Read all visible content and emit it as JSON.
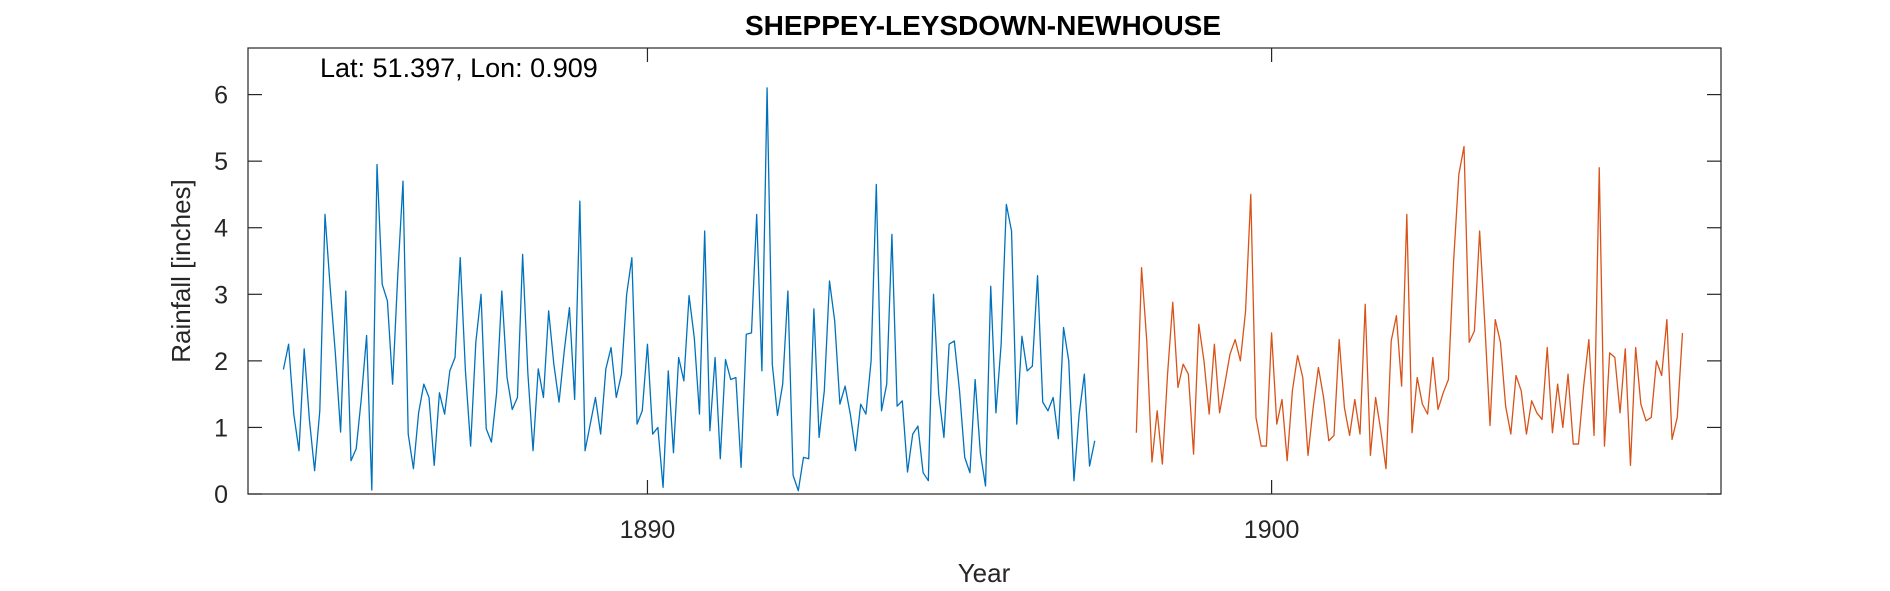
{
  "chart_data": {
    "type": "line",
    "title": "SHEPPEY-LEYSDOWN-NEWHOUSE",
    "annotation": "Lat: 51.397, Lon: 0.909",
    "xlabel": "Year",
    "ylabel": "Rainfall [inches]",
    "xlim": [
      1883.6,
      1907.2
    ],
    "ylim": [
      0,
      6.7
    ],
    "xticks": [
      1890,
      1900
    ],
    "xtick_labels": [
      "1890",
      "1900"
    ],
    "yticks": [
      0,
      1,
      2,
      3,
      4,
      5,
      6
    ],
    "ytick_labels": [
      "0",
      "1",
      "2",
      "3",
      "4",
      "5",
      "6"
    ],
    "grid": false,
    "legend": "none",
    "series": [
      {
        "color": "#0072BD",
        "x_start": 1884.167,
        "x_step": 0.08333,
        "values": [
          1.87,
          2.25,
          1.2,
          0.65,
          2.18,
          1.12,
          0.35,
          1.25,
          4.2,
          3.1,
          2.1,
          0.93,
          3.05,
          0.5,
          0.68,
          1.45,
          2.38,
          0.06,
          4.95,
          3.15,
          2.9,
          1.65,
          3.3,
          4.7,
          0.9,
          0.38,
          1.22,
          1.65,
          1.45,
          0.43,
          1.52,
          1.2,
          1.85,
          2.05,
          3.55,
          1.85,
          0.72,
          2.28,
          3.0,
          0.98,
          0.78,
          1.52,
          3.05,
          1.75,
          1.27,
          1.45,
          3.6,
          1.82,
          0.65,
          1.88,
          1.45,
          2.75,
          1.95,
          1.38,
          2.15,
          2.8,
          1.42,
          4.4,
          0.65,
          1.05,
          1.45,
          0.9,
          1.88,
          2.2,
          1.45,
          1.8,
          3.0,
          3.55,
          1.05,
          1.25,
          2.25,
          0.9,
          1.0,
          0.1,
          1.85,
          0.62,
          2.05,
          1.7,
          2.98,
          2.35,
          1.2,
          3.95,
          0.95,
          2.05,
          0.53,
          2.02,
          1.72,
          1.75,
          0.4,
          2.4,
          2.42,
          4.2,
          1.85,
          6.1,
          1.95,
          1.18,
          1.65,
          3.05,
          0.28,
          0.05,
          0.55,
          0.53,
          2.78,
          0.85,
          1.55,
          3.2,
          2.6,
          1.35,
          1.62,
          1.2,
          0.65,
          1.35,
          1.2,
          2.0,
          4.65,
          1.25,
          1.65,
          3.9,
          1.32,
          1.4,
          0.33,
          0.9,
          1.02,
          0.32,
          0.2,
          3.0,
          1.5,
          0.85,
          2.25,
          2.3,
          1.55,
          0.55,
          0.32,
          1.72,
          0.62,
          0.12,
          3.12,
          1.22,
          2.25,
          4.35,
          3.95,
          1.05,
          2.37,
          1.85,
          1.92,
          3.28,
          1.38,
          1.25,
          1.45,
          0.83,
          2.5,
          2.0,
          0.2,
          1.2,
          1.8,
          0.42,
          0.8
        ]
      },
      {
        "color": "#D95319",
        "x_start": 1897.833,
        "x_step": 0.08333,
        "values": [
          0.92,
          3.4,
          2.3,
          0.48,
          1.25,
          0.45,
          1.8,
          2.88,
          1.6,
          1.95,
          1.8,
          0.6,
          2.55,
          2.0,
          1.2,
          2.25,
          1.22,
          1.65,
          2.1,
          2.32,
          2.0,
          2.75,
          4.5,
          1.15,
          0.72,
          0.72,
          2.42,
          1.05,
          1.42,
          0.5,
          1.55,
          2.08,
          1.75,
          0.58,
          1.3,
          1.9,
          1.45,
          0.8,
          0.88,
          2.32,
          1.3,
          0.88,
          1.42,
          0.9,
          2.85,
          0.58,
          1.45,
          0.95,
          0.38,
          2.3,
          2.68,
          1.62,
          4.2,
          0.92,
          1.75,
          1.35,
          1.2,
          2.05,
          1.27,
          1.52,
          1.72,
          3.5,
          4.8,
          5.22,
          2.28,
          2.45,
          3.95,
          2.55,
          1.03,
          2.62,
          2.28,
          1.32,
          0.9,
          1.78,
          1.55,
          0.9,
          1.4,
          1.22,
          1.12,
          2.2,
          0.92,
          1.65,
          1.0,
          1.8,
          0.75,
          0.75,
          1.62,
          2.32,
          0.88,
          4.9,
          0.72,
          2.12,
          2.05,
          1.22,
          2.18,
          0.43,
          2.2,
          1.35,
          1.1,
          1.15,
          2.0,
          1.78,
          2.62,
          0.82,
          1.15,
          2.42
        ]
      }
    ]
  }
}
